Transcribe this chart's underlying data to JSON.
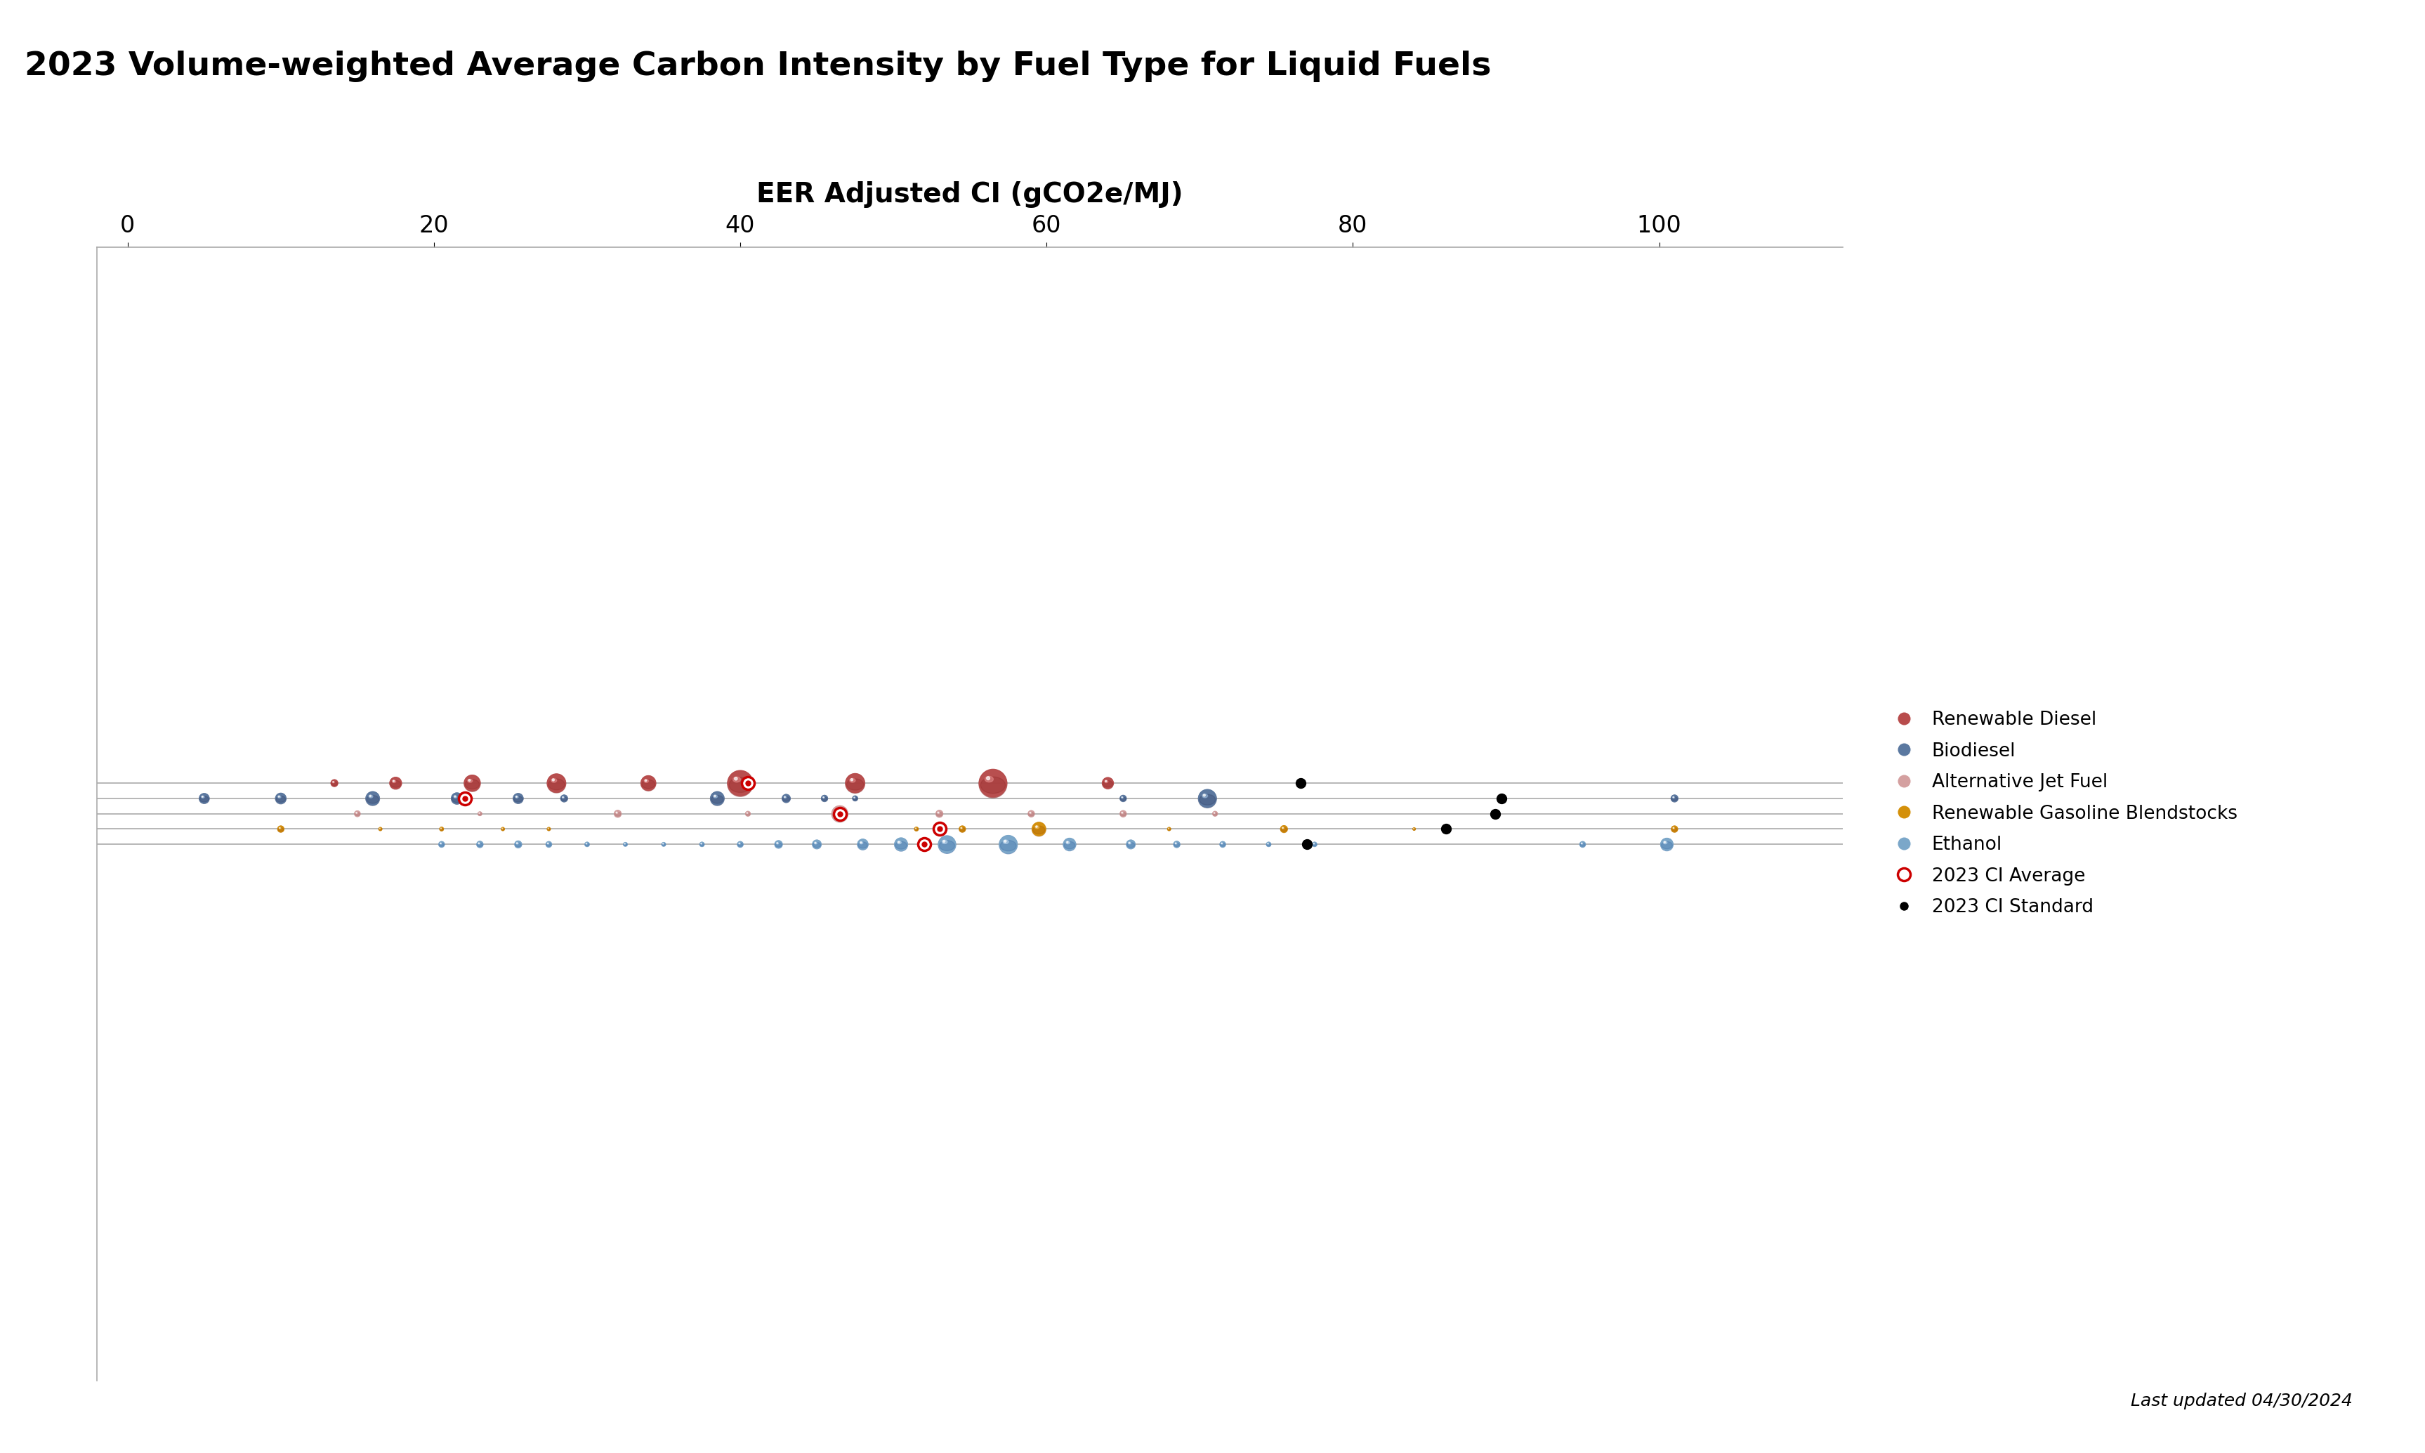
{
  "title": "2023 Volume-weighted Average Carbon Intensity by Fuel Type for Liquid Fuels",
  "xlabel": "EER Adjusted CI (gCO2e/MJ)",
  "xlim": [
    -2,
    112
  ],
  "xticks": [
    0,
    20,
    40,
    60,
    80,
    100
  ],
  "footer": "Last updated 04/30/2024",
  "rows": [
    {
      "label": "Renewable Diesel",
      "y": 4,
      "color": "#b84c4c",
      "shadow_color": "#8a2020",
      "highlight_color": "#e89090",
      "bubbles": [
        {
          "x": 13.5,
          "r": 0.22
        },
        {
          "x": 17.5,
          "r": 0.38
        },
        {
          "x": 22.5,
          "r": 0.52
        },
        {
          "x": 28.0,
          "r": 0.6
        },
        {
          "x": 34.0,
          "r": 0.48
        },
        {
          "x": 40.0,
          "r": 0.82
        },
        {
          "x": 47.5,
          "r": 0.62
        },
        {
          "x": 56.5,
          "r": 0.9
        },
        {
          "x": 64.0,
          "r": 0.36
        }
      ],
      "ci_average": 40.5,
      "ci_standard": 76.6
    },
    {
      "label": "Biodiesel",
      "y": 3,
      "color": "#5a78a0",
      "shadow_color": "#2a3860",
      "highlight_color": "#a0c0e0",
      "bubbles": [
        {
          "x": 5.0,
          "r": 0.32
        },
        {
          "x": 10.0,
          "r": 0.34
        },
        {
          "x": 16.0,
          "r": 0.44
        },
        {
          "x": 21.5,
          "r": 0.36
        },
        {
          "x": 25.5,
          "r": 0.32
        },
        {
          "x": 28.5,
          "r": 0.22
        },
        {
          "x": 38.5,
          "r": 0.44
        },
        {
          "x": 43.0,
          "r": 0.26
        },
        {
          "x": 45.5,
          "r": 0.2
        },
        {
          "x": 47.5,
          "r": 0.16
        },
        {
          "x": 65.0,
          "r": 0.2
        },
        {
          "x": 70.5,
          "r": 0.58
        },
        {
          "x": 101.0,
          "r": 0.22
        }
      ],
      "ci_average": 22.0,
      "ci_standard": 89.7
    },
    {
      "label": "Alternative Jet Fuel",
      "y": 2,
      "color": "#d4a0a0",
      "shadow_color": "#a06060",
      "highlight_color": "#f0d0d0",
      "bubbles": [
        {
          "x": 15.0,
          "r": 0.18
        },
        {
          "x": 23.0,
          "r": 0.12
        },
        {
          "x": 32.0,
          "r": 0.22
        },
        {
          "x": 40.5,
          "r": 0.15
        },
        {
          "x": 46.5,
          "r": 0.52
        },
        {
          "x": 53.0,
          "r": 0.22
        },
        {
          "x": 59.0,
          "r": 0.2
        },
        {
          "x": 65.0,
          "r": 0.2
        },
        {
          "x": 71.0,
          "r": 0.15
        }
      ],
      "ci_average": 46.5,
      "ci_standard": 89.3
    },
    {
      "label": "Renewable Gasoline Blendstocks",
      "y": 1,
      "color": "#d4900a",
      "shadow_color": "#a05000",
      "highlight_color": "#f0c060",
      "bubbles": [
        {
          "x": 10.0,
          "r": 0.2
        },
        {
          "x": 16.5,
          "r": 0.1
        },
        {
          "x": 20.5,
          "r": 0.12
        },
        {
          "x": 24.5,
          "r": 0.1
        },
        {
          "x": 27.5,
          "r": 0.1
        },
        {
          "x": 51.5,
          "r": 0.12
        },
        {
          "x": 54.5,
          "r": 0.2
        },
        {
          "x": 59.5,
          "r": 0.44
        },
        {
          "x": 68.0,
          "r": 0.1
        },
        {
          "x": 75.5,
          "r": 0.22
        },
        {
          "x": 84.0,
          "r": 0.08
        },
        {
          "x": 101.0,
          "r": 0.2
        }
      ],
      "ci_average": 53.0,
      "ci_standard": 86.1
    },
    {
      "label": "Ethanol",
      "y": 0,
      "color": "#7ba7c9",
      "shadow_color": "#3060a0",
      "highlight_color": "#c0daf0",
      "bubbles": [
        {
          "x": 20.5,
          "r": 0.18
        },
        {
          "x": 23.0,
          "r": 0.2
        },
        {
          "x": 25.5,
          "r": 0.22
        },
        {
          "x": 27.5,
          "r": 0.18
        },
        {
          "x": 30.0,
          "r": 0.14
        },
        {
          "x": 32.5,
          "r": 0.12
        },
        {
          "x": 35.0,
          "r": 0.12
        },
        {
          "x": 37.5,
          "r": 0.14
        },
        {
          "x": 40.0,
          "r": 0.18
        },
        {
          "x": 42.5,
          "r": 0.24
        },
        {
          "x": 45.0,
          "r": 0.28
        },
        {
          "x": 48.0,
          "r": 0.34
        },
        {
          "x": 50.5,
          "r": 0.42
        },
        {
          "x": 53.5,
          "r": 0.56
        },
        {
          "x": 57.5,
          "r": 0.58
        },
        {
          "x": 61.5,
          "r": 0.4
        },
        {
          "x": 65.5,
          "r": 0.28
        },
        {
          "x": 68.5,
          "r": 0.2
        },
        {
          "x": 71.5,
          "r": 0.18
        },
        {
          "x": 74.5,
          "r": 0.14
        },
        {
          "x": 77.5,
          "r": 0.14
        },
        {
          "x": 95.0,
          "r": 0.18
        },
        {
          "x": 100.5,
          "r": 0.4
        }
      ],
      "ci_average": 52.0,
      "ci_standard": 77.0
    }
  ],
  "legend_items": [
    {
      "label": "Renewable Diesel",
      "color": "#b84c4c"
    },
    {
      "label": "Biodiesel",
      "color": "#5a78a0"
    },
    {
      "label": "Alternative Jet Fuel",
      "color": "#d4a0a0"
    },
    {
      "label": "Renewable Gasoline Blendstocks",
      "color": "#d4900a"
    },
    {
      "label": "Ethanol",
      "color": "#7ba7c9"
    },
    {
      "label": "2023 CI Average",
      "color": "#cc0000",
      "marker": "bullseye"
    },
    {
      "label": "2023 CI Standard",
      "color": "#000000",
      "marker": "dot"
    }
  ]
}
